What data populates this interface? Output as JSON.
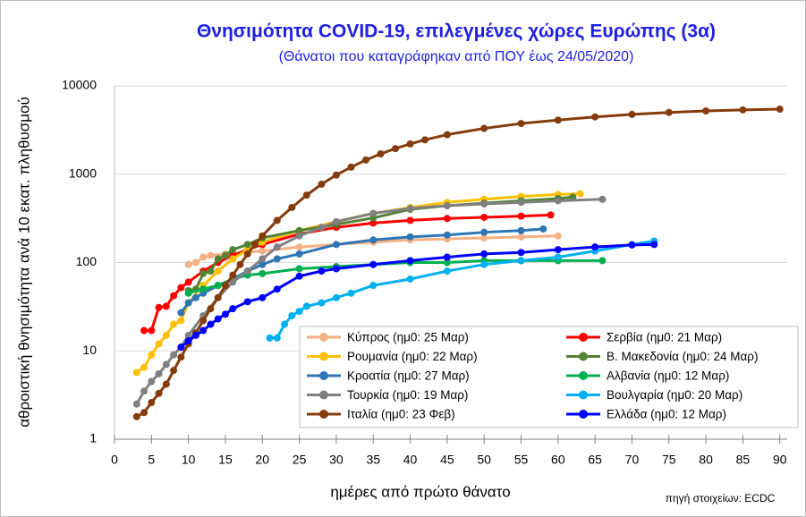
{
  "chart_data": {
    "type": "line",
    "title": "Θνησιμότητα COVID-19, επιλεγμένες χώρες Ευρώπης (3α)",
    "subtitle": "(Θάνατοι που καταγράφηκαν από ΠΟΥ έως 24/05/2020)",
    "y_label": "αθροιστική θνησιμότητα ανά 10 εκατ. πληθυσμού",
    "x_label": "ημέρες από πρώτο θάνατο",
    "source": "πηγή στοιχείων: ECDC",
    "xlim": [
      0,
      91
    ],
    "xticks": [
      0,
      5,
      10,
      15,
      20,
      25,
      30,
      35,
      40,
      45,
      50,
      55,
      60,
      65,
      70,
      75,
      80,
      85,
      90
    ],
    "ylim": [
      1,
      10000
    ],
    "yticks": [
      1,
      10,
      100,
      1000,
      10000
    ],
    "log_y": true,
    "grid": true,
    "legend": "lower right",
    "series": [
      {
        "name": "Κύπρος (ημ0: 25 Μαρ)",
        "color": "#f4b183",
        "x": [
          10,
          11,
          12,
          13,
          15,
          20,
          25,
          30,
          35,
          40,
          45,
          50,
          55,
          60
        ],
        "values": [
          95,
          100,
          115,
          120,
          125,
          135,
          150,
          160,
          170,
          180,
          185,
          190,
          195,
          200
        ]
      },
      {
        "name": "Σερβία (ημ0: 21 Μαρ)",
        "color": "#ff0000",
        "x": [
          4,
          5,
          6,
          7,
          8,
          9,
          10,
          12,
          14,
          16,
          18,
          20,
          25,
          30,
          35,
          40,
          45,
          50,
          55,
          59
        ],
        "values": [
          17,
          17,
          31,
          32,
          42,
          52,
          60,
          80,
          100,
          120,
          140,
          160,
          210,
          250,
          280,
          300,
          315,
          325,
          335,
          345
        ]
      },
      {
        "name": "Ρουμανία (ημ0: 22 Μαρ)",
        "color": "#ffc000",
        "x": [
          3,
          4,
          5,
          6,
          7,
          8,
          9,
          10,
          12,
          14,
          16,
          18,
          20,
          25,
          30,
          35,
          40,
          45,
          50,
          55,
          60,
          63
        ],
        "values": [
          5.7,
          6.5,
          9,
          12,
          15,
          20,
          22,
          35,
          55,
          80,
          110,
          140,
          170,
          230,
          290,
          360,
          420,
          480,
          520,
          560,
          590,
          600
        ]
      },
      {
        "name": "Β. Μακεδονία (ημ0: 24 Μαρ)",
        "color": "#548235",
        "x": [
          10,
          11,
          12,
          13,
          14,
          15,
          16,
          18,
          20,
          25,
          30,
          35,
          40,
          45,
          50,
          55,
          60,
          62
        ],
        "values": [
          48,
          50,
          75,
          80,
          110,
          120,
          140,
          160,
          190,
          230,
          270,
          320,
          400,
          440,
          470,
          500,
          530,
          550
        ]
      },
      {
        "name": "Κροατία (ημ0: 27 Μαρ)",
        "color": "#2e75b6",
        "x": [
          9,
          10,
          11,
          12,
          14,
          16,
          18,
          20,
          22,
          25,
          30,
          35,
          40,
          45,
          50,
          55,
          58
        ],
        "values": [
          27,
          35,
          40,
          45,
          55,
          65,
          80,
          95,
          110,
          125,
          160,
          180,
          195,
          205,
          220,
          230,
          240
        ]
      },
      {
        "name": "Αλβανία (ημ0: 12 Μαρ)",
        "color": "#00b050",
        "x": [
          10,
          12,
          14,
          16,
          18,
          20,
          25,
          30,
          35,
          40,
          45,
          50,
          55,
          60,
          66
        ],
        "values": [
          45,
          50,
          55,
          65,
          72,
          75,
          85,
          90,
          95,
          100,
          100,
          105,
          105,
          105,
          105
        ]
      },
      {
        "name": "Τουρκία (ημ0: 19 Μαρ)",
        "color": "#808080",
        "x": [
          3,
          4,
          5,
          6,
          7,
          8,
          9,
          10,
          12,
          14,
          16,
          18,
          20,
          22,
          25,
          28,
          30,
          35,
          40,
          45,
          50,
          55,
          60,
          66
        ],
        "values": [
          2.5,
          3.5,
          4.5,
          5.5,
          7,
          9,
          11,
          15,
          25,
          40,
          60,
          80,
          110,
          150,
          200,
          250,
          290,
          360,
          410,
          440,
          460,
          480,
          500,
          520
        ]
      },
      {
        "name": "Βουλγαρία (ημ0: 20 Μαρ)",
        "color": "#00b0f0",
        "x": [
          21,
          22,
          23,
          24,
          25,
          26,
          28,
          30,
          32,
          35,
          40,
          45,
          50,
          55,
          60,
          65,
          70,
          73
        ],
        "values": [
          14,
          14,
          20,
          25,
          28,
          32,
          35,
          40,
          45,
          55,
          65,
          80,
          95,
          105,
          115,
          135,
          160,
          175
        ]
      },
      {
        "name": "Ιταλία (ημ0: 23 Φεβ)",
        "color": "#843c0c",
        "x": [
          3,
          4,
          5,
          6,
          7,
          8,
          9,
          10,
          11,
          12,
          13,
          14,
          15,
          16,
          17,
          18,
          19,
          20,
          22,
          24,
          26,
          28,
          30,
          32,
          34,
          36,
          38,
          40,
          42,
          45,
          50,
          55,
          60,
          65,
          70,
          75,
          80,
          85,
          90
        ],
        "values": [
          1.8,
          2,
          2.6,
          3.3,
          4.2,
          6,
          8.5,
          12,
          16,
          22,
          30,
          40,
          55,
          72,
          95,
          125,
          160,
          200,
          300,
          420,
          580,
          770,
          980,
          1200,
          1450,
          1700,
          1950,
          2200,
          2450,
          2800,
          3300,
          3750,
          4100,
          4450,
          4750,
          5000,
          5200,
          5350,
          5450
        ]
      },
      {
        "name": "Ελλάδα (ημ0: 12 Μαρ)",
        "color": "#0000ff",
        "x": [
          9,
          10,
          11,
          12,
          13,
          14,
          15,
          16,
          18,
          20,
          22,
          25,
          28,
          30,
          35,
          40,
          45,
          50,
          55,
          60,
          65,
          70,
          73
        ],
        "values": [
          11,
          13,
          15,
          17,
          20,
          23,
          26,
          30,
          36,
          40,
          50,
          70,
          80,
          85,
          95,
          105,
          115,
          125,
          130,
          140,
          150,
          158,
          160
        ]
      }
    ]
  }
}
